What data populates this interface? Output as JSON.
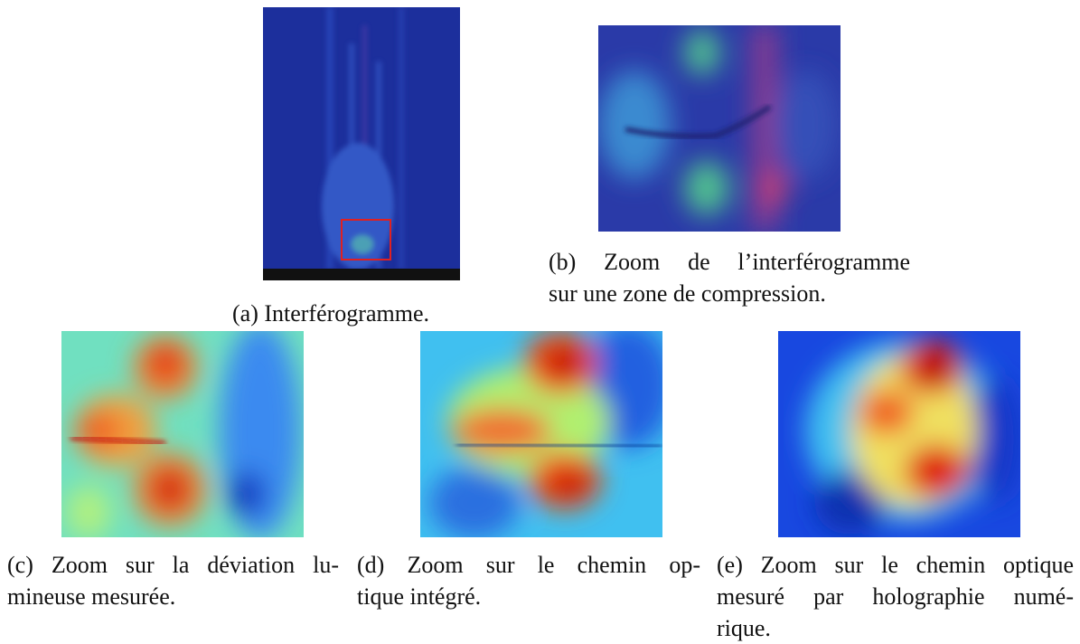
{
  "figures": [
    {
      "caption": [
        "(a) Interférogramme."
      ]
    },
    {
      "caption": [
        "(b) Zoom de l’interférogramme",
        "sur une zone de compression."
      ]
    },
    {
      "caption": [
        "(c) Zoom sur la déviation lu-",
        "mineuse mesurée."
      ]
    },
    {
      "caption": [
        "(d) Zoom sur le chemin op-",
        "tique intégré."
      ]
    },
    {
      "caption": [
        "(e) Zoom sur le chemin optique",
        "mesuré par holographie numé-",
        "rique."
      ]
    }
  ]
}
